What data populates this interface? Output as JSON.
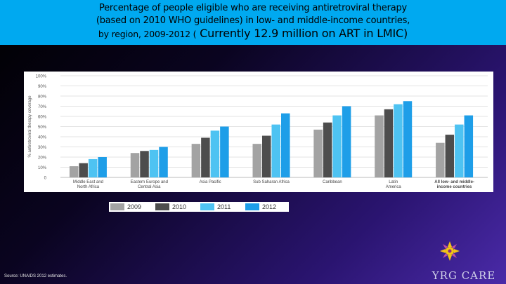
{
  "title": {
    "line1": "Percentage of people eligible who are receiving antiretroviral therapy",
    "line2": "(based on 2010 WHO guidelines) in low- and middle-income countries,",
    "line3_small": "by region, 2009-2012  (",
    "line3_big": "  Currently 12.9 million on ART in LMIC)"
  },
  "source": "Source: UNAIDS 2012 estimates.",
  "logo": {
    "text": "YRG CARE",
    "icon": "lotus-emblem-icon"
  },
  "colors": {
    "title_band": "#00a9f0",
    "s2009": "#a3a3a3",
    "s2010": "#4d4d4d",
    "s2011": "#4ec3f2",
    "s2012": "#1e9ee8"
  },
  "chart_data": {
    "type": "bar",
    "ylabel": "% antiretroviral therapy coverage",
    "ylim": [
      0,
      100
    ],
    "yticks": [
      "0",
      "10%",
      "20%",
      "30%",
      "40%",
      "50%",
      "60%",
      "70%",
      "80%",
      "90%",
      "100%"
    ],
    "grid": true,
    "legend_position": "bottom",
    "categories": [
      [
        "Middle East and",
        "North Africa"
      ],
      [
        "Eastern Europe and",
        "Central Asia"
      ],
      [
        "Asia Pacific"
      ],
      [
        "Sub Saharan Africa"
      ],
      [
        "Caribbean"
      ],
      [
        "Latin",
        "America"
      ],
      [
        "All low- and middle-",
        "income countries"
      ]
    ],
    "series": [
      {
        "name": "2009",
        "color": "#a3a3a3",
        "values": [
          11,
          24,
          33,
          33,
          47,
          61,
          34
        ]
      },
      {
        "name": "2010",
        "color": "#4d4d4d",
        "values": [
          14,
          26,
          39,
          41,
          54,
          67,
          42
        ]
      },
      {
        "name": "2011",
        "color": "#4ec3f2",
        "values": [
          18,
          27,
          46,
          52,
          61,
          72,
          52
        ]
      },
      {
        "name": "2012",
        "color": "#1e9ee8",
        "values": [
          20,
          30,
          50,
          63,
          70,
          75,
          61
        ]
      }
    ]
  }
}
